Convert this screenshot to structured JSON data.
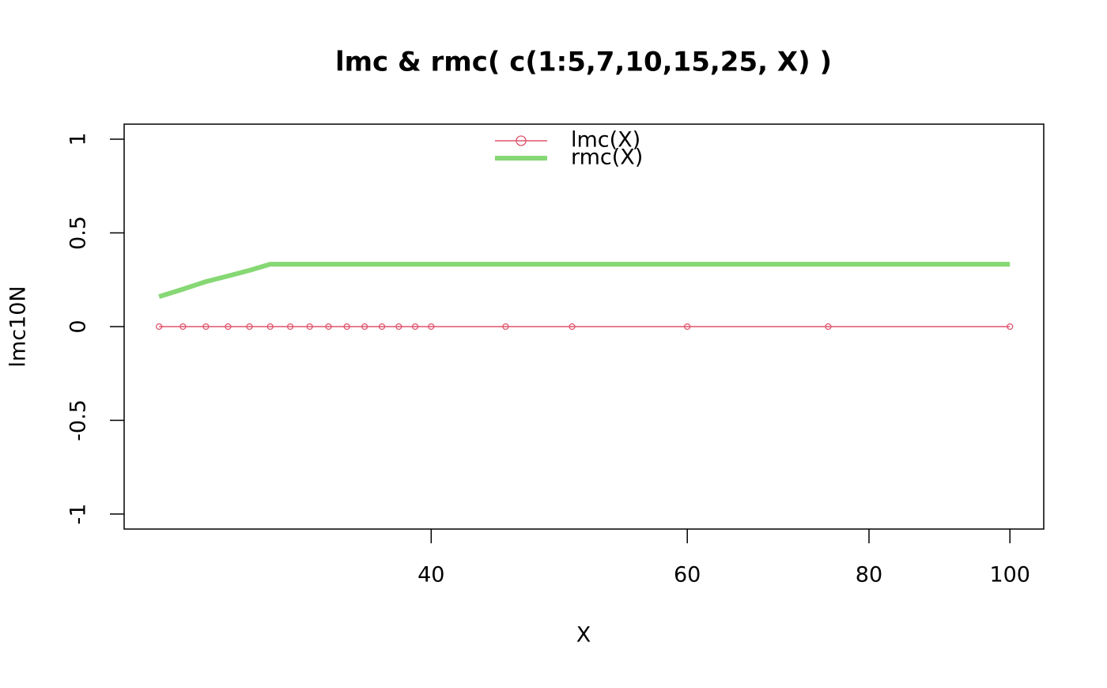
{
  "chart_data": {
    "type": "line",
    "title": "lmc & rmc( c(1:5,7,10,15,25, X) )",
    "x_label": "X",
    "y_label": "lmc10N",
    "x": [
      26,
      27,
      28,
      29,
      30,
      31,
      32,
      33,
      34,
      35,
      36,
      37,
      38,
      39,
      40,
      45,
      50,
      60,
      75,
      100
    ],
    "series": [
      {
        "name": "lmc(X)",
        "color": "#DF536B",
        "marker": "circle",
        "line_width": 1,
        "values": [
          0,
          0,
          0,
          0,
          0,
          0,
          0,
          0,
          0,
          0,
          0,
          0,
          0,
          0,
          0,
          0,
          0,
          0,
          0,
          0
        ]
      },
      {
        "name": "rmc(X)",
        "color": "#86D874",
        "marker": "none",
        "line_width": 4,
        "values": [
          0.16,
          0.2,
          0.24,
          0.27,
          0.3,
          0.333,
          0.333,
          0.333,
          0.333,
          0.333,
          0.333,
          0.333,
          0.333,
          0.333,
          0.333,
          0.333,
          0.333,
          0.333,
          0.333,
          0.333
        ]
      }
    ],
    "xlim": [
      24.6,
      105.5
    ],
    "xticks": [
      40,
      60,
      80,
      100
    ],
    "xlog": true,
    "ylim": [
      -1.08,
      1.08
    ],
    "yticks": [
      -1.0,
      -0.5,
      0.0,
      0.5,
      1.0
    ],
    "legend": "top"
  }
}
